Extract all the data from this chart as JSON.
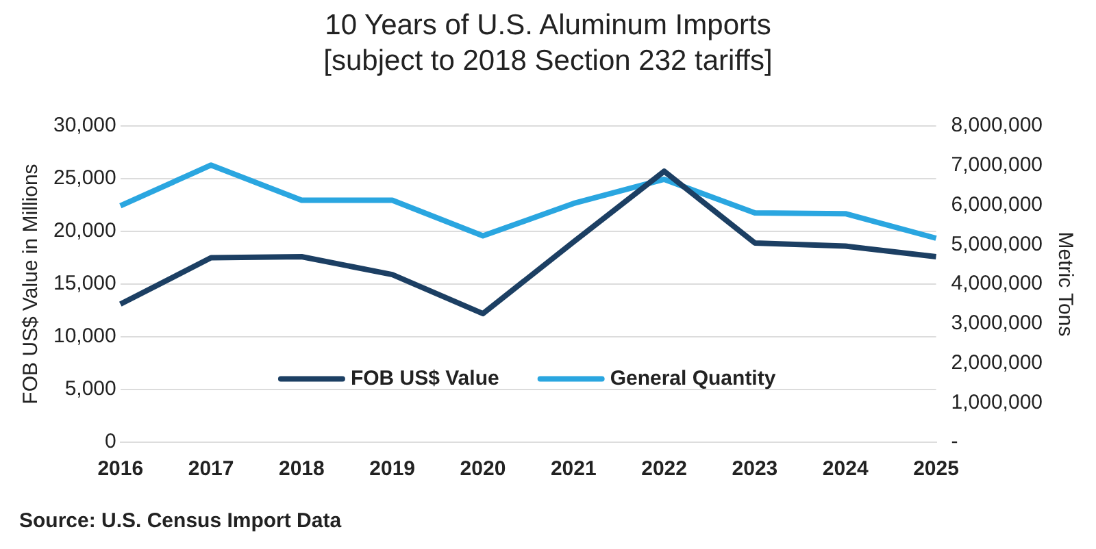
{
  "chart_data": {
    "type": "line",
    "title": "10 Years of U.S. Aluminum Imports\n[subject to 2018 Section 232 tariffs]",
    "ylabel": "FOB US$ Value in Millions",
    "y2label": "Metric Tons",
    "categories": [
      "2016",
      "2017",
      "2018",
      "2019",
      "2020",
      "2021",
      "2022",
      "2023",
      "2024",
      "2025"
    ],
    "series": [
      {
        "name": "FOB US$ Value",
        "color": "#1c3f63",
        "values": [
          13100,
          17500,
          17600,
          15900,
          12200,
          19000,
          25700,
          18900,
          18600,
          17600
        ]
      },
      {
        "name": "General Quantity",
        "color": "#2aa6e0",
        "axis": "y2",
        "values": [
          5980000,
          7010000,
          6120000,
          6120000,
          5220000,
          6040000,
          6650000,
          5800000,
          5780000,
          5160000
        ]
      }
    ],
    "ylim": [
      0,
      30000
    ],
    "yticks": [
      0,
      {
        "value": 5000,
        "label": "5,000"
      },
      {
        "value": 10000,
        "label": "10,000"
      },
      {
        "value": 15000,
        "label": "15,000"
      },
      {
        "value": 20000,
        "label": "20,000"
      },
      {
        "value": 25000,
        "label": "25,000"
      },
      {
        "value": 30000,
        "label": "30,000"
      }
    ],
    "y2lim": [
      0,
      8000000
    ],
    "y2ticks": [
      {
        "value": 0,
        "label": "-"
      },
      {
        "value": 1000000,
        "label": "1,000,000"
      },
      {
        "value": 2000000,
        "label": "2,000,000"
      },
      {
        "value": 3000000,
        "label": "3,000,000"
      },
      {
        "value": 4000000,
        "label": "4,000,000"
      },
      {
        "value": 5000000,
        "label": "5,000,000"
      },
      {
        "value": 6000000,
        "label": "6,000,000"
      },
      {
        "value": 7000000,
        "label": "7,000,000"
      },
      {
        "value": 8000000,
        "label": "8,000,000"
      }
    ],
    "grid": "y",
    "legend": "bottom",
    "marker": "none",
    "line_style": "solid",
    "annotations": [
      "Source: U.S. Census Import Data"
    ]
  }
}
